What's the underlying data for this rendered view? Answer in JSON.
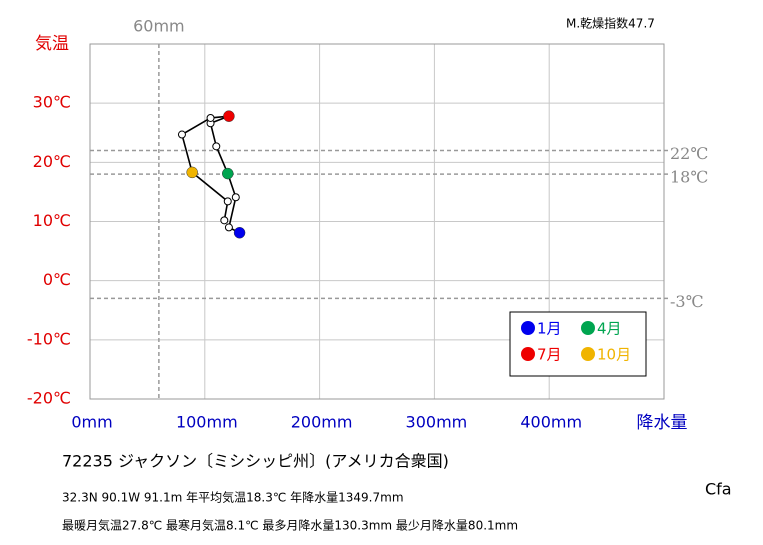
{
  "chart_data": {
    "type": "climograph",
    "y_label": "気温",
    "x_label": "降水量",
    "x": [
      130.3,
      121,
      127,
      120,
      110,
      105,
      121,
      105,
      80.1,
      89,
      120,
      117
    ],
    "values": [
      8.1,
      9.0,
      14.1,
      18.1,
      22.7,
      26.6,
      27.8,
      27.5,
      24.7,
      18.3,
      13.4,
      10.2
    ],
    "xlim": [
      0,
      500
    ],
    "ylim": [
      -20,
      40
    ],
    "xticks": [
      {
        "value": 0,
        "label": "0mm"
      },
      {
        "value": 100,
        "label": "100mm"
      },
      {
        "value": 200,
        "label": "200mm"
      },
      {
        "value": 300,
        "label": "300mm"
      },
      {
        "value": 400,
        "label": "400mm"
      },
      {
        "value": 500,
        "label": ""
      }
    ],
    "yticks": [
      {
        "value": -20,
        "label": "-20℃"
      },
      {
        "value": -10,
        "label": "-10℃"
      },
      {
        "value": 0,
        "label": "0℃"
      },
      {
        "value": 10,
        "label": "10℃"
      },
      {
        "value": 20,
        "label": "20℃"
      },
      {
        "value": 30,
        "label": "30℃"
      },
      {
        "value": 40,
        "label": ""
      }
    ],
    "grid": true,
    "ref_lines": [
      {
        "axis": "x",
        "value": 60,
        "label": "60mm"
      },
      {
        "axis": "y",
        "value": 22,
        "label": "22℃"
      },
      {
        "axis": "y",
        "value": 18,
        "label": "18℃"
      },
      {
        "axis": "y",
        "value": -3,
        "label": "-3℃"
      }
    ],
    "legend": [
      {
        "name": "1月",
        "color": "#0000ee"
      },
      {
        "name": "4月",
        "color": "#00a550"
      },
      {
        "name": "7月",
        "color": "#ee0000"
      },
      {
        "name": "10月",
        "color": "#f0b400"
      }
    ],
    "aridity": "M.乾燥指数47.7",
    "station": "72235  ジャクソン〔ミシシッピ州〕(アメリカ合衆国)",
    "info1": "32.3N  90.1W 91.1m  年平均気温18.3℃ 年降水量1349.7mm",
    "info2": "最暖月気温27.8℃ 最寒月気温8.1℃ 最多月降水量130.3mm 最少月降水量80.1mm",
    "climate": "Cfa"
  }
}
